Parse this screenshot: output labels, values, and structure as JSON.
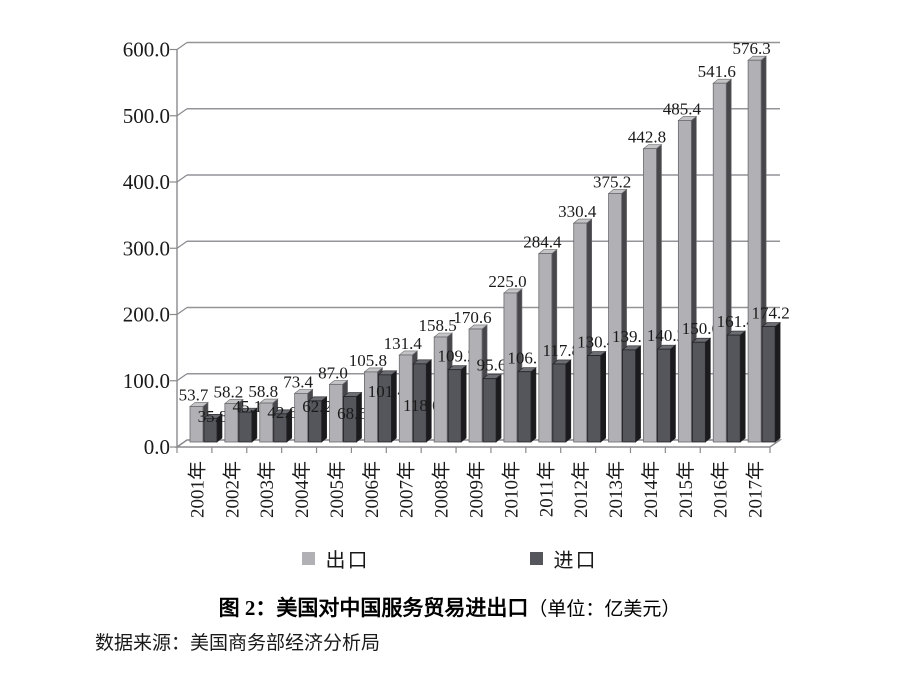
{
  "chart_data": {
    "type": "bar",
    "style": "3d-column",
    "title": "图 2：美国对中国服务贸易进出口",
    "unit_label": "（单位：亿美元）",
    "source": "数据来源：美国商务部经济分析局",
    "categories": [
      "2001年",
      "2002年",
      "2003年",
      "2004年",
      "2005年",
      "2006年",
      "2007年",
      "2008年",
      "2009年",
      "2010年",
      "2011年",
      "2012年",
      "2013年",
      "2014年",
      "2015年",
      "2016年",
      "2017年"
    ],
    "series": [
      {
        "name": "出口",
        "values": [
          53.7,
          58.2,
          58.8,
          73.4,
          87.0,
          105.8,
          131.4,
          158.5,
          170.6,
          225.0,
          284.4,
          330.4,
          375.2,
          442.8,
          485.4,
          541.6,
          576.3
        ]
      },
      {
        "name": "进口",
        "values": [
          35.8,
          45.1,
          42.6,
          62.2,
          68.6,
          101.4,
          118.0,
          109.2,
          95.6,
          106.1,
          117.8,
          130.4,
          139.1,
          140.2,
          150.6,
          161.4,
          174.2
        ]
      }
    ],
    "ylim": [
      0,
      600
    ],
    "ytick_step": 100,
    "ytick_labels": [
      "0.0",
      "100.0",
      "200.0",
      "300.0",
      "400.0",
      "500.0",
      "600.0"
    ],
    "grid": true,
    "legend_position": "bottom",
    "data_labels": true,
    "colors": {
      "export_face": "#b1b1b5",
      "export_side": "#47474b",
      "export_top": "#c4c4c7",
      "import_face": "#54565b",
      "import_side": "#1b1b1e",
      "import_top": "#6b6d72",
      "gridline": "#949498",
      "axis": "#8a8a8e",
      "label_text": "#1a1a1a"
    },
    "label_layout": {
      "import_inside_label_baselines": [
        422,
        412,
        418,
        412,
        419,
        397,
        411
      ]
    }
  }
}
